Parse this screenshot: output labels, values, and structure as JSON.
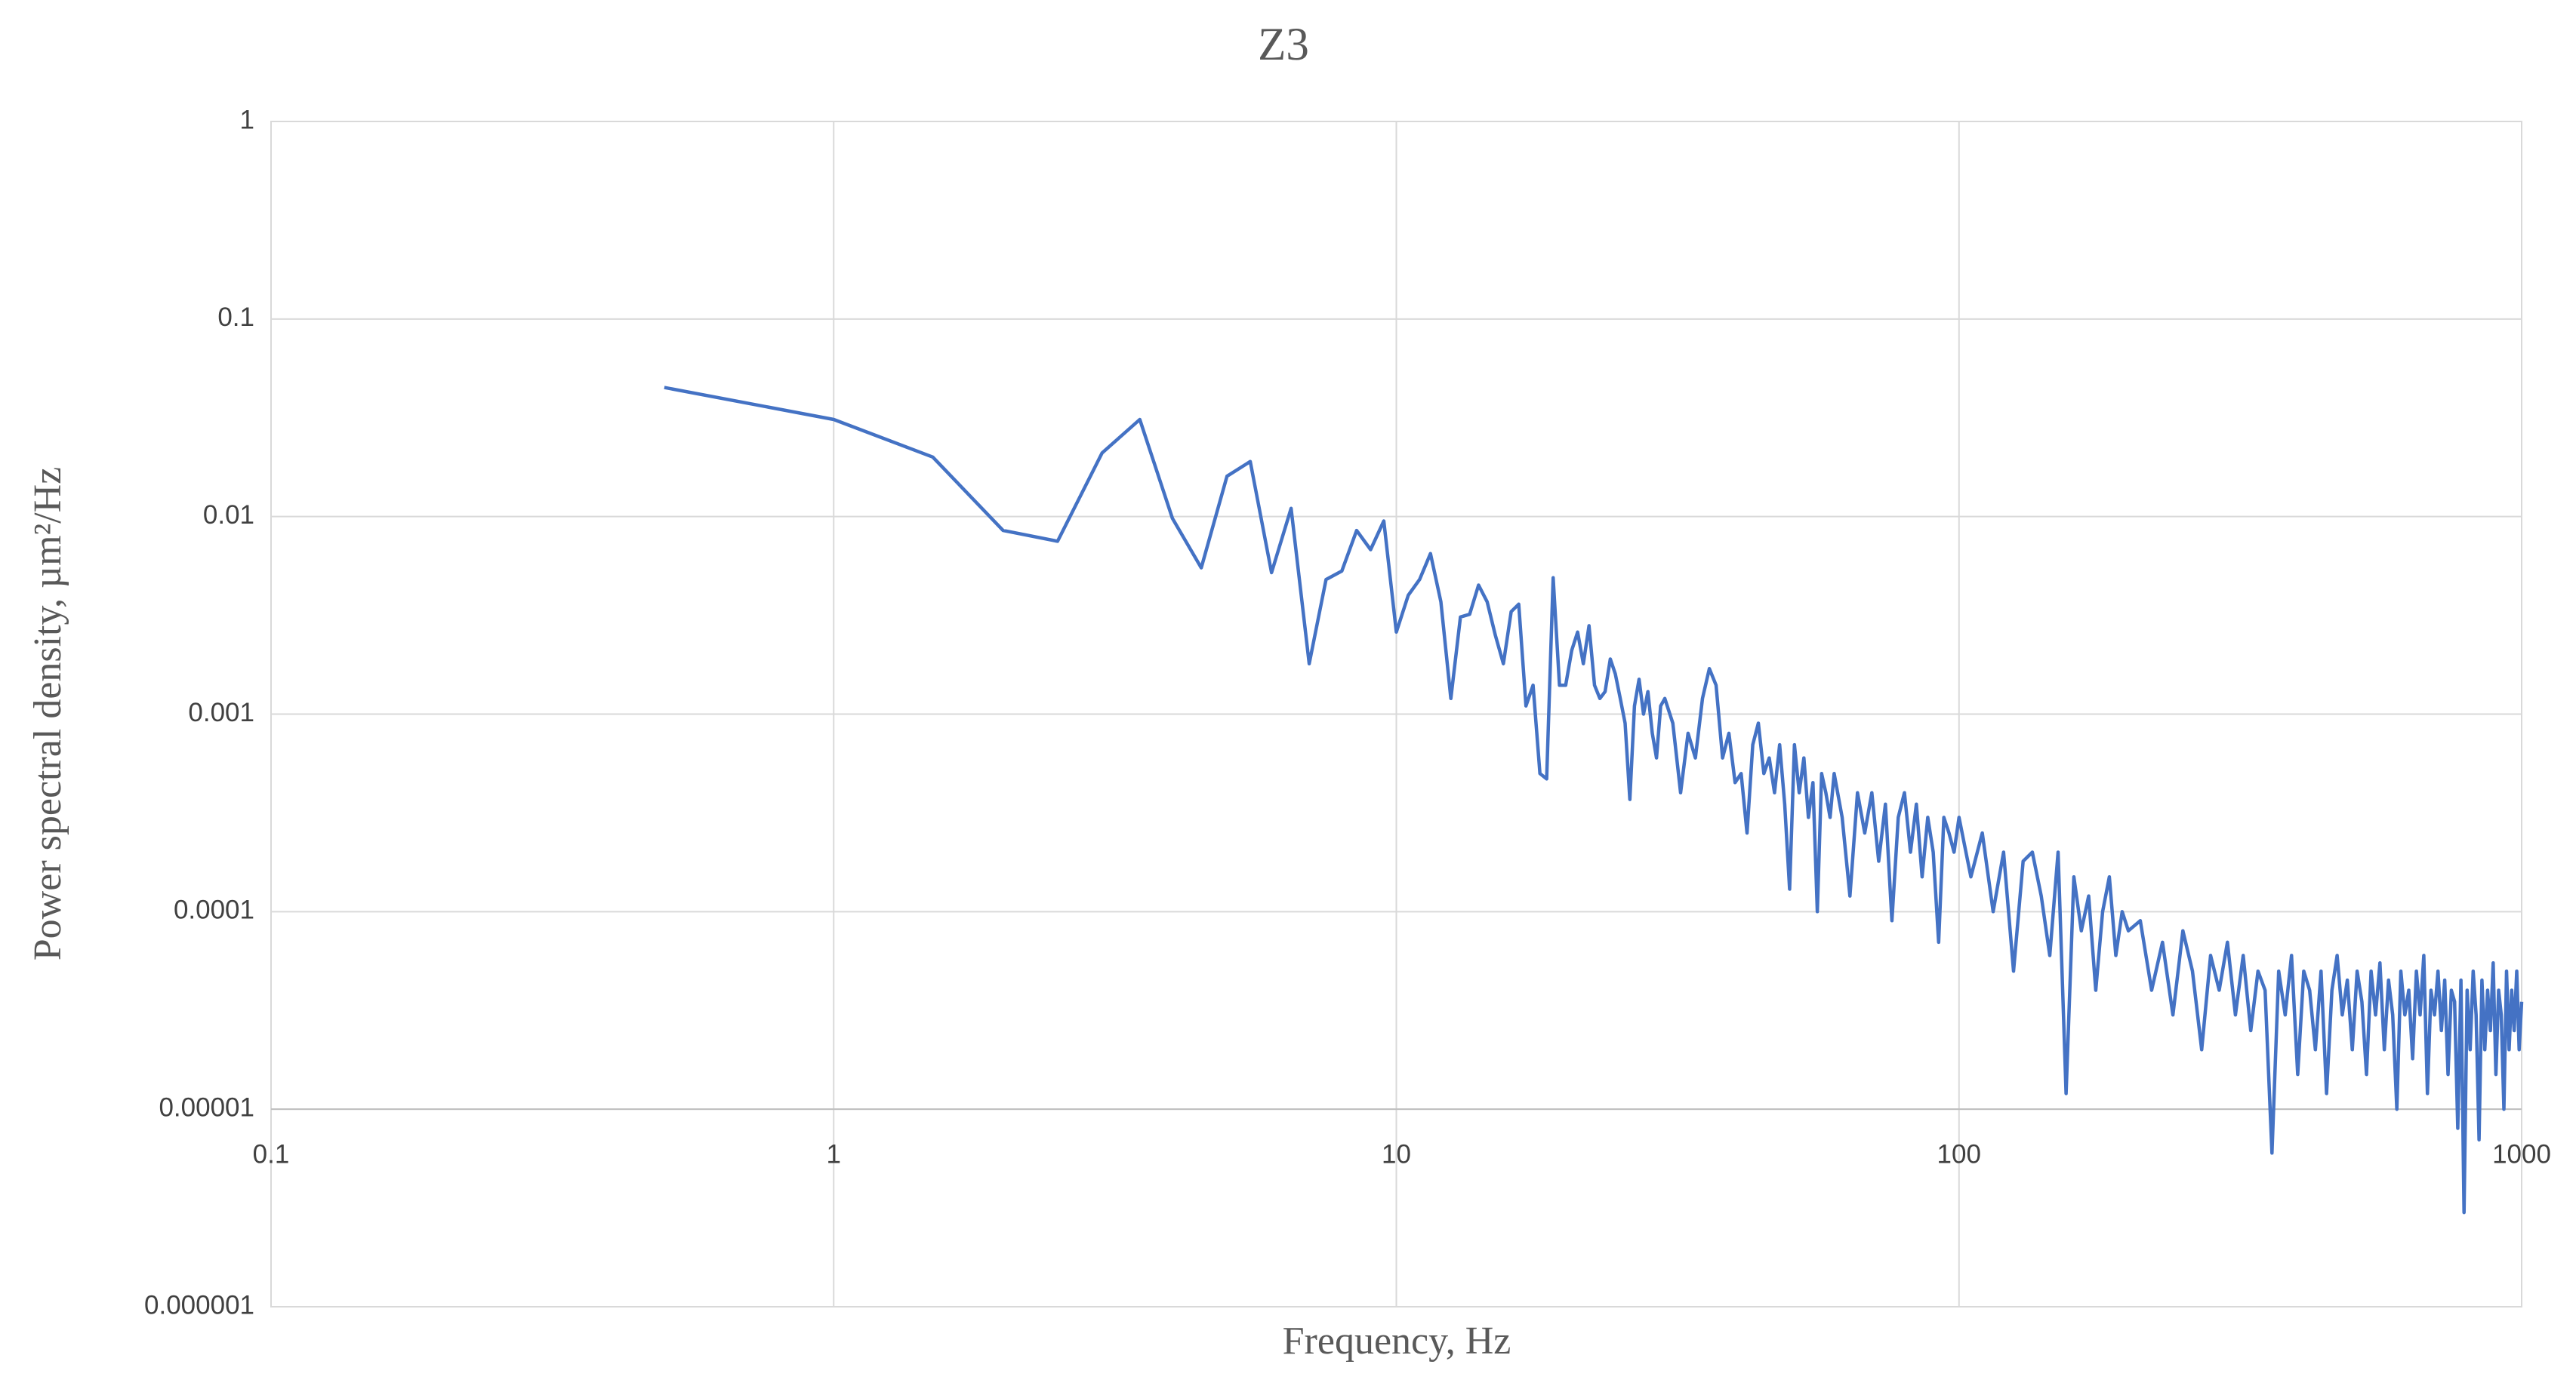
{
  "chart_data": {
    "type": "line",
    "title": "Z3",
    "x_label": "Frequency, Hz",
    "y_label": "Power spectral density, µm²/Hz",
    "x_log": true,
    "y_log": true,
    "grid": true,
    "x_axis_crosses": 1e-05,
    "xlim": [
      0.1,
      1000
    ],
    "xticks": [
      0.1,
      1,
      10,
      100,
      1000
    ],
    "ylim": [
      1e-06,
      1
    ],
    "yticks": [
      1e-06,
      1e-05,
      0.0001,
      0.001,
      0.01,
      0.1,
      1
    ],
    "series": [
      {
        "name": "Z3",
        "color": "#4472c4",
        "x": [
          0.5,
          1,
          1.5,
          2,
          2.5,
          3,
          3.5,
          4,
          4.5,
          5,
          5.5,
          6,
          6.5,
          7,
          7.5,
          8,
          8.5,
          9,
          9.5,
          10,
          10.5,
          11,
          11.5,
          12,
          12.5,
          13,
          13.5,
          14,
          14.5,
          15,
          15.5,
          16,
          16.5,
          17,
          17.5,
          18,
          18.5,
          19,
          19.5,
          20,
          20.5,
          21,
          21.5,
          22,
          22.5,
          23,
          23.5,
          24,
          24.5,
          25,
          25.5,
          26,
          26.5,
          27,
          27.5,
          28,
          28.5,
          29,
          29.5,
          30,
          31,
          32,
          33,
          34,
          35,
          36,
          37,
          38,
          39,
          40,
          41,
          42,
          43,
          44,
          45,
          46,
          47,
          48,
          49,
          50,
          51,
          52,
          53,
          54,
          55,
          56,
          57,
          58,
          59,
          60,
          62,
          64,
          66,
          68,
          70,
          72,
          74,
          76,
          78,
          80,
          82,
          84,
          86,
          88,
          90,
          92,
          94,
          96,
          98,
          100,
          105,
          110,
          115,
          120,
          125,
          130,
          135,
          140,
          145,
          150,
          155,
          160,
          165,
          170,
          175,
          180,
          185,
          190,
          195,
          200,
          210,
          220,
          230,
          240,
          250,
          260,
          270,
          280,
          290,
          300,
          310,
          320,
          330,
          340,
          350,
          360,
          370,
          380,
          390,
          400,
          410,
          420,
          430,
          440,
          450,
          460,
          470,
          480,
          490,
          500,
          510,
          520,
          530,
          540,
          550,
          560,
          570,
          580,
          590,
          600,
          610,
          620,
          630,
          640,
          650,
          660,
          670,
          680,
          690,
          700,
          710,
          720,
          730,
          740,
          750,
          760,
          770,
          780,
          790,
          800,
          810,
          820,
          830,
          840,
          850,
          860,
          870,
          880,
          890,
          900,
          910,
          920,
          930,
          940,
          950,
          960,
          970,
          980,
          990,
          1000
        ],
        "values": [
          0.045,
          0.031,
          0.02,
          0.0085,
          0.0075,
          0.021,
          0.031,
          0.0098,
          0.0055,
          0.016,
          0.019,
          0.0052,
          0.011,
          0.0018,
          0.0048,
          0.0053,
          0.0085,
          0.0068,
          0.0095,
          0.0026,
          0.004,
          0.0048,
          0.0065,
          0.0037,
          0.0012,
          0.0031,
          0.0032,
          0.0045,
          0.0037,
          0.0025,
          0.0018,
          0.0033,
          0.0036,
          0.0011,
          0.0014,
          0.0005,
          0.00047,
          0.0049,
          0.0014,
          0.0014,
          0.0021,
          0.0026,
          0.0018,
          0.0028,
          0.0014,
          0.0012,
          0.0013,
          0.0019,
          0.0016,
          0.0012,
          0.0009,
          0.00037,
          0.0011,
          0.0015,
          0.001,
          0.0013,
          0.0008,
          0.0006,
          0.0011,
          0.0012,
          0.0009,
          0.0004,
          0.0008,
          0.0006,
          0.0012,
          0.0017,
          0.0014,
          0.0006,
          0.0008,
          0.00045,
          0.0005,
          0.00025,
          0.0007,
          0.0009,
          0.0005,
          0.0006,
          0.0004,
          0.0007,
          0.00035,
          0.00013,
          0.0007,
          0.0004,
          0.0006,
          0.0003,
          0.00045,
          0.0001,
          0.0005,
          0.0004,
          0.0003,
          0.0005,
          0.0003,
          0.00012,
          0.0004,
          0.00025,
          0.0004,
          0.00018,
          0.00035,
          9e-05,
          0.0003,
          0.0004,
          0.0002,
          0.00035,
          0.00015,
          0.0003,
          0.0002,
          7e-05,
          0.0003,
          0.00025,
          0.0002,
          0.0003,
          0.00015,
          0.00025,
          0.0001,
          0.0002,
          5e-05,
          0.00018,
          0.0002,
          0.00012,
          6e-05,
          0.0002,
          1.2e-05,
          0.00015,
          8e-05,
          0.00012,
          4e-05,
          0.0001,
          0.00015,
          6e-05,
          0.0001,
          8e-05,
          9e-05,
          4e-05,
          7e-05,
          3e-05,
          8e-05,
          5e-05,
          2e-05,
          6e-05,
          4e-05,
          7e-05,
          3e-05,
          6e-05,
          2.5e-05,
          5e-05,
          4e-05,
          6e-06,
          5e-05,
          3e-05,
          6e-05,
          1.5e-05,
          5e-05,
          4e-05,
          2e-05,
          5e-05,
          1.2e-05,
          4e-05,
          6e-05,
          3e-05,
          4.5e-05,
          2e-05,
          5e-05,
          3.5e-05,
          1.5e-05,
          5e-05,
          3e-05,
          5.5e-05,
          2e-05,
          4.5e-05,
          3e-05,
          1e-05,
          5e-05,
          3e-05,
          4e-05,
          1.8e-05,
          5e-05,
          3e-05,
          6e-05,
          1.2e-05,
          4e-05,
          3e-05,
          5e-05,
          2.5e-05,
          4.5e-05,
          1.5e-05,
          4e-05,
          3.5e-05,
          8e-06,
          4.5e-05,
          3e-06,
          4e-05,
          2e-05,
          5e-05,
          3e-05,
          7e-06,
          4.5e-05,
          2e-05,
          4e-05,
          2.5e-05,
          5.5e-05,
          1.5e-05,
          4e-05,
          3e-05,
          1e-05,
          5e-05,
          2e-05,
          4e-05,
          2.5e-05,
          5e-05,
          2e-05,
          3.5e-05
        ]
      }
    ]
  }
}
